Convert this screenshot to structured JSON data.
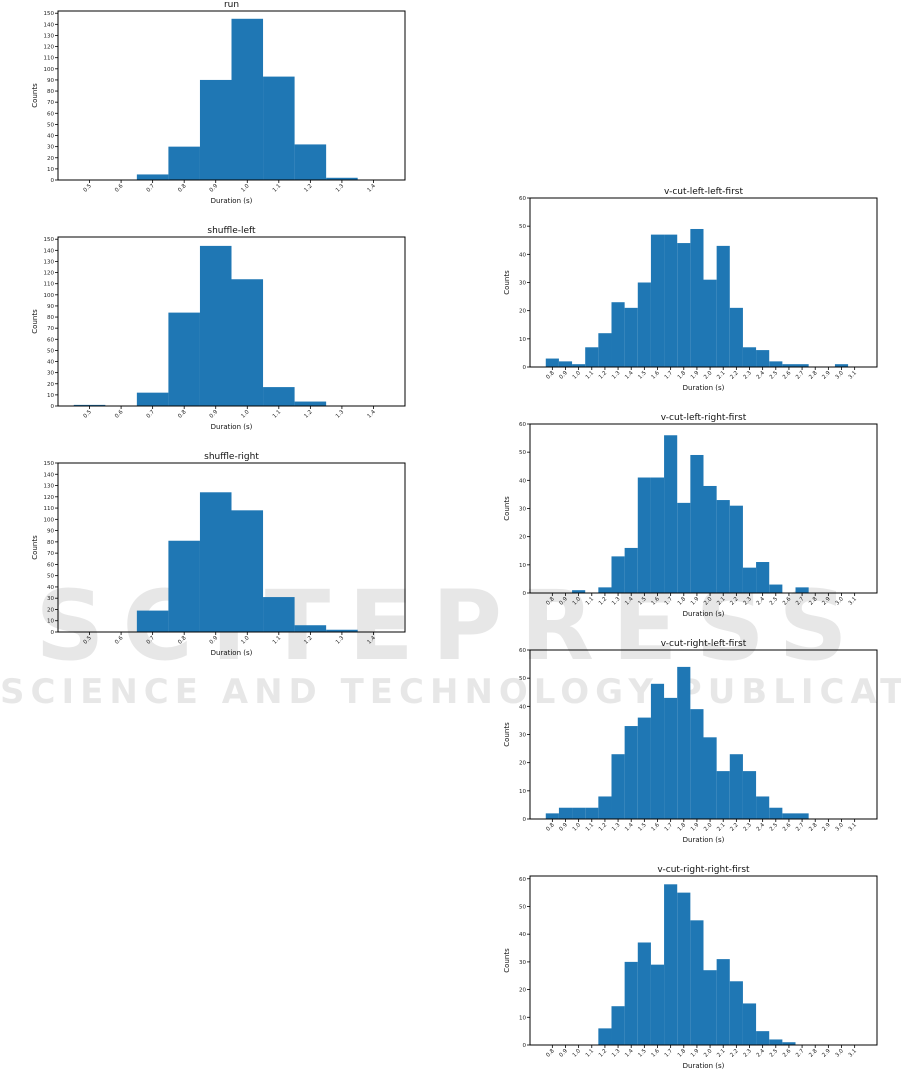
{
  "watermark": {
    "line1": "SCITEPRESS",
    "line2": "SCIENCE AND TECHNOLOGY PUBLICATIONS"
  },
  "colors": {
    "bar": "#1f77b4",
    "axis": "#000000",
    "text": "#222222"
  },
  "chart_data": [
    {
      "type": "bar",
      "title": "run",
      "xlabel": "Duration (s)",
      "ylabel": "Counts",
      "xlim": [
        0.4,
        1.5
      ],
      "ylim": [
        0,
        152
      ],
      "yticks": [
        0,
        10,
        20,
        30,
        40,
        50,
        60,
        70,
        80,
        90,
        100,
        110,
        120,
        130,
        140,
        150
      ],
      "categories": [
        "0.5",
        "0.6",
        "0.7",
        "0.8",
        "0.9",
        "1.0",
        "1.1",
        "1.2",
        "1.3",
        "1.4"
      ],
      "values": [
        0,
        0,
        5,
        30,
        90,
        145,
        93,
        32,
        2,
        0
      ],
      "grid": false
    },
    {
      "type": "bar",
      "title": "shuffle-left",
      "xlabel": "Duration (s)",
      "ylabel": "Counts",
      "xlim": [
        0.4,
        1.5
      ],
      "ylim": [
        0,
        152
      ],
      "yticks": [
        0,
        10,
        20,
        30,
        40,
        50,
        60,
        70,
        80,
        90,
        100,
        110,
        120,
        130,
        140,
        150
      ],
      "categories": [
        "0.5",
        "0.6",
        "0.7",
        "0.8",
        "0.9",
        "1.0",
        "1.1",
        "1.2",
        "1.3",
        "1.4"
      ],
      "values": [
        1,
        0,
        12,
        84,
        144,
        114,
        17,
        4,
        0,
        0
      ],
      "grid": false
    },
    {
      "type": "bar",
      "title": "shuffle-right",
      "xlabel": "Duration (s)",
      "ylabel": "Counts",
      "xlim": [
        0.4,
        1.5
      ],
      "ylim": [
        0,
        150
      ],
      "yticks": [
        0,
        10,
        20,
        30,
        40,
        50,
        60,
        70,
        80,
        90,
        100,
        110,
        120,
        130,
        140,
        150
      ],
      "categories": [
        "0.5",
        "0.6",
        "0.7",
        "0.8",
        "0.9",
        "1.0",
        "1.1",
        "1.2",
        "1.3",
        "1.4"
      ],
      "values": [
        0,
        0,
        19,
        81,
        124,
        108,
        31,
        6,
        2,
        0
      ],
      "grid": false
    },
    {
      "type": "bar",
      "title": "v-cut-left-left-first",
      "xlabel": "Duration (s)",
      "ylabel": "Counts",
      "xlim": [
        0.63,
        3.27
      ],
      "ylim": [
        0,
        60
      ],
      "yticks": [
        0,
        10,
        20,
        30,
        40,
        50,
        60
      ],
      "categories": [
        "0.8",
        "0.9",
        "1.0",
        "1.1",
        "1.2",
        "1.3",
        "1.4",
        "1.5",
        "1.6",
        "1.7",
        "1.8",
        "1.9",
        "2.0",
        "2.1",
        "2.2",
        "2.3",
        "2.4",
        "2.5",
        "2.6",
        "2.7",
        "2.8",
        "2.9",
        "3.0",
        "3.1"
      ],
      "values": [
        3,
        2,
        1,
        7,
        12,
        23,
        21,
        30,
        47,
        47,
        44,
        49,
        31,
        43,
        21,
        7,
        6,
        2,
        1,
        1,
        0,
        0,
        1,
        0
      ],
      "grid": false
    },
    {
      "type": "bar",
      "title": "v-cut-left-right-first",
      "xlabel": "Duration (s)",
      "ylabel": "Counts",
      "xlim": [
        0.63,
        3.27
      ],
      "ylim": [
        0,
        60
      ],
      "yticks": [
        0,
        10,
        20,
        30,
        40,
        50,
        60
      ],
      "categories": [
        "0.8",
        "0.9",
        "1.0",
        "1.1",
        "1.2",
        "1.3",
        "1.4",
        "1.5",
        "1.6",
        "1.7",
        "1.8",
        "1.9",
        "2.0",
        "2.1",
        "2.2",
        "2.3",
        "2.4",
        "2.5",
        "2.6",
        "2.7",
        "2.8",
        "2.9",
        "3.0",
        "3.1"
      ],
      "values": [
        0,
        0,
        1,
        0,
        2,
        13,
        16,
        41,
        41,
        56,
        32,
        49,
        38,
        33,
        31,
        9,
        11,
        3,
        0,
        2,
        0,
        0,
        0,
        0
      ],
      "grid": false
    },
    {
      "type": "bar",
      "title": "v-cut-right-left-first",
      "xlabel": "Duration (s)",
      "ylabel": "Counts",
      "xlim": [
        0.63,
        3.27
      ],
      "ylim": [
        0,
        60
      ],
      "yticks": [
        0,
        10,
        20,
        30,
        40,
        50,
        60
      ],
      "categories": [
        "0.8",
        "0.9",
        "1.0",
        "1.1",
        "1.2",
        "1.3",
        "1.4",
        "1.5",
        "1.6",
        "1.7",
        "1.8",
        "1.9",
        "2.0",
        "2.1",
        "2.2",
        "2.3",
        "2.4",
        "2.5",
        "2.6",
        "2.7",
        "2.8",
        "2.9",
        "3.0",
        "3.1"
      ],
      "values": [
        2,
        4,
        4,
        4,
        8,
        23,
        33,
        36,
        48,
        43,
        54,
        39,
        29,
        17,
        23,
        17,
        8,
        4,
        2,
        2,
        0,
        0,
        0,
        0
      ],
      "grid": false
    },
    {
      "type": "bar",
      "title": "v-cut-right-right-first",
      "xlabel": "Duration (s)",
      "ylabel": "Counts",
      "xlim": [
        0.63,
        3.27
      ],
      "ylim": [
        0,
        61
      ],
      "yticks": [
        0,
        10,
        20,
        30,
        40,
        50,
        60
      ],
      "categories": [
        "0.8",
        "0.9",
        "1.0",
        "1.1",
        "1.2",
        "1.3",
        "1.4",
        "1.5",
        "1.6",
        "1.7",
        "1.8",
        "1.9",
        "2.0",
        "2.1",
        "2.2",
        "2.3",
        "2.4",
        "2.5",
        "2.6",
        "2.7",
        "2.8",
        "2.9",
        "3.0",
        "3.1"
      ],
      "values": [
        0,
        0,
        0,
        0,
        6,
        14,
        30,
        37,
        29,
        58,
        55,
        45,
        27,
        31,
        23,
        15,
        5,
        2,
        1,
        0,
        0,
        0,
        0,
        0
      ],
      "grid": false
    }
  ]
}
